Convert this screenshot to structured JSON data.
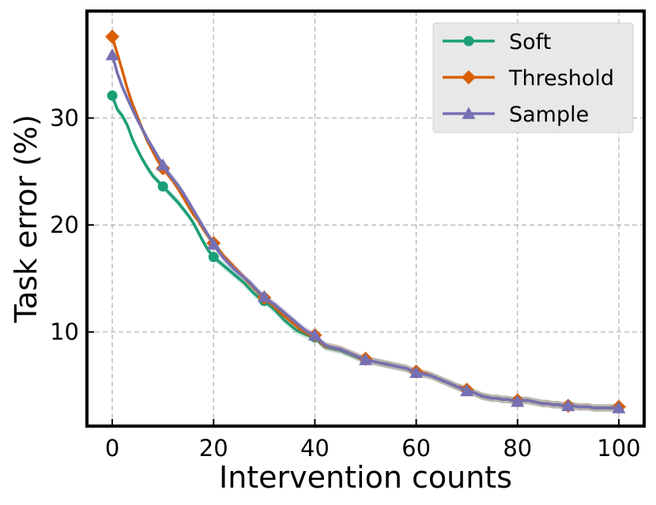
{
  "chart_data": {
    "type": "line",
    "title": "",
    "xlabel": "Intervention counts",
    "ylabel": "Task error (%)",
    "xlim": [
      -5,
      105
    ],
    "ylim": [
      1.2,
      40
    ],
    "xticks": [
      0,
      20,
      40,
      60,
      80,
      100
    ],
    "yticks": [
      10,
      20,
      30
    ],
    "grid": true,
    "legend_position": "top-right",
    "x": [
      0,
      1,
      2,
      3,
      4,
      5,
      6,
      7,
      8,
      9,
      10,
      11,
      12,
      13,
      14,
      15,
      16,
      17,
      18,
      19,
      20,
      21,
      22,
      23,
      24,
      25,
      26,
      27,
      28,
      29,
      30,
      31,
      32,
      33,
      34,
      35,
      36,
      37,
      38,
      39,
      40,
      41,
      42,
      43,
      44,
      45,
      46,
      47,
      48,
      49,
      50,
      51,
      52,
      53,
      54,
      55,
      56,
      57,
      58,
      59,
      60,
      61,
      62,
      63,
      64,
      65,
      66,
      67,
      68,
      69,
      70,
      71,
      72,
      73,
      74,
      75,
      76,
      77,
      78,
      79,
      80,
      81,
      82,
      83,
      84,
      85,
      86,
      87,
      88,
      89,
      90,
      91,
      92,
      93,
      94,
      95,
      96,
      97,
      98,
      99,
      100
    ],
    "marker_x": [
      0,
      10,
      20,
      30,
      40,
      50,
      60,
      70,
      80,
      90,
      100
    ],
    "series": [
      {
        "name": "Soft",
        "color": "#1b9e77",
        "marker": "circle",
        "values": [
          32.1,
          30.8,
          30.2,
          29.3,
          28.0,
          27.0,
          26.1,
          25.3,
          24.6,
          24.1,
          23.6,
          23.1,
          22.6,
          22.1,
          21.5,
          20.9,
          20.2,
          19.3,
          18.4,
          17.6,
          17.0,
          16.6,
          16.2,
          15.8,
          15.4,
          15.0,
          14.6,
          14.1,
          13.6,
          13.2,
          12.9,
          12.5,
          12.1,
          11.6,
          11.1,
          10.7,
          10.3,
          10.0,
          9.8,
          9.6,
          9.5,
          9.0,
          8.6,
          8.5,
          8.4,
          8.3,
          8.1,
          7.9,
          7.7,
          7.5,
          7.4,
          7.3,
          7.2,
          7.1,
          7.0,
          6.9,
          6.8,
          6.7,
          6.6,
          6.4,
          6.2,
          6.1,
          6.0,
          5.9,
          5.7,
          5.5,
          5.3,
          5.1,
          4.9,
          4.7,
          4.6,
          4.4,
          4.2,
          4.0,
          3.9,
          3.8,
          3.8,
          3.7,
          3.7,
          3.6,
          3.6,
          3.6,
          3.6,
          3.5,
          3.4,
          3.3,
          3.3,
          3.2,
          3.2,
          3.1,
          3.1,
          3.1,
          3.0,
          3.0,
          3.0,
          2.9,
          2.9,
          2.9,
          2.9,
          2.9,
          2.9
        ]
      },
      {
        "name": "Threshold",
        "color": "#d95f02",
        "marker": "diamond",
        "values": [
          37.6,
          36.0,
          34.4,
          32.7,
          31.3,
          30.1,
          28.9,
          27.8,
          26.9,
          26.0,
          25.3,
          24.7,
          24.1,
          23.4,
          22.6,
          21.8,
          21.0,
          20.4,
          19.6,
          18.9,
          18.3,
          17.7,
          17.1,
          16.6,
          16.1,
          15.6,
          15.1,
          14.6,
          14.1,
          13.6,
          13.2,
          12.8,
          12.4,
          11.9,
          11.5,
          11.1,
          10.7,
          10.3,
          10.0,
          9.8,
          9.7,
          9.1,
          8.7,
          8.6,
          8.5,
          8.4,
          8.2,
          8.0,
          7.8,
          7.6,
          7.5,
          7.3,
          7.2,
          7.1,
          7.0,
          6.9,
          6.8,
          6.7,
          6.6,
          6.4,
          6.3,
          6.2,
          6.1,
          5.9,
          5.7,
          5.5,
          5.3,
          5.1,
          4.9,
          4.8,
          4.6,
          4.4,
          4.2,
          4.0,
          3.9,
          3.8,
          3.8,
          3.7,
          3.7,
          3.6,
          3.6,
          3.6,
          3.6,
          3.5,
          3.4,
          3.3,
          3.3,
          3.2,
          3.2,
          3.1,
          3.1,
          3.1,
          3.0,
          3.0,
          3.0,
          2.9,
          2.9,
          2.9,
          2.9,
          2.9,
          3.0
        ]
      },
      {
        "name": "Sample",
        "color": "#7570b3",
        "marker": "triangle",
        "values": [
          35.9,
          34.2,
          32.9,
          31.8,
          30.8,
          29.8,
          28.9,
          28.0,
          27.2,
          26.4,
          25.6,
          24.9,
          24.3,
          23.7,
          23.0,
          22.2,
          21.4,
          20.6,
          19.8,
          19.0,
          18.2,
          17.5,
          16.9,
          16.4,
          15.9,
          15.5,
          15.1,
          14.7,
          14.2,
          13.7,
          13.3,
          12.9,
          12.6,
          12.2,
          11.8,
          11.4,
          11.0,
          10.6,
          10.2,
          9.9,
          9.7,
          9.2,
          8.8,
          8.6,
          8.5,
          8.4,
          8.2,
          8.0,
          7.8,
          7.6,
          7.4,
          7.3,
          7.2,
          7.1,
          7.0,
          6.9,
          6.8,
          6.7,
          6.6,
          6.4,
          6.2,
          6.1,
          6.0,
          5.9,
          5.7,
          5.5,
          5.3,
          5.1,
          4.9,
          4.7,
          4.5,
          4.4,
          4.2,
          4.0,
          3.9,
          3.8,
          3.8,
          3.7,
          3.7,
          3.6,
          3.5,
          3.6,
          3.6,
          3.5,
          3.4,
          3.3,
          3.3,
          3.2,
          3.2,
          3.1,
          3.1,
          3.1,
          3.0,
          3.0,
          3.0,
          2.9,
          2.9,
          2.9,
          2.9,
          2.9,
          2.9
        ]
      }
    ]
  }
}
